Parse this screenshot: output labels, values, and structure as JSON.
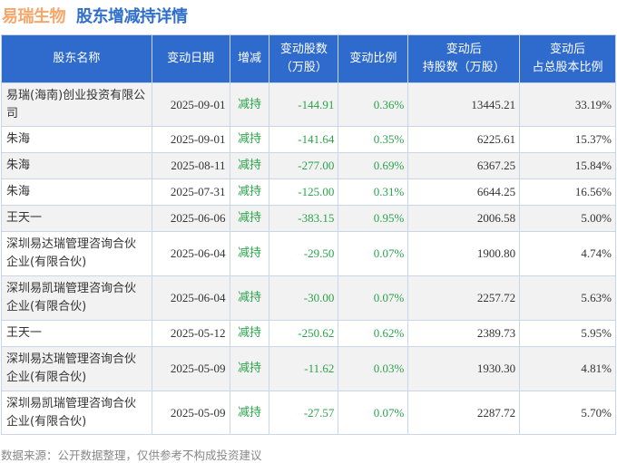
{
  "title": {
    "company": "易瑞生物",
    "subtitle": "股东增减持详情"
  },
  "headers": [
    "股东名称",
    "变动日期",
    "增减",
    "变动股数\n（万股）",
    "变动比例",
    "变动后\n持股数（万股）",
    "变动后\n占总股本比例"
  ],
  "rows": [
    [
      "易瑞(海南)创业投资有限公司",
      "2025-09-01",
      "减持",
      "-144.91",
      "0.36%",
      "13445.21",
      "33.19%"
    ],
    [
      "朱海",
      "2025-09-01",
      "减持",
      "-141.64",
      "0.35%",
      "6225.61",
      "15.37%"
    ],
    [
      "朱海",
      "2025-08-11",
      "减持",
      "-277.00",
      "0.69%",
      "6367.25",
      "15.84%"
    ],
    [
      "朱海",
      "2025-07-31",
      "减持",
      "-125.00",
      "0.31%",
      "6644.25",
      "16.56%"
    ],
    [
      "王天一",
      "2025-06-06",
      "减持",
      "-383.15",
      "0.95%",
      "2006.58",
      "5.00%"
    ],
    [
      "深圳易达瑞管理咨询合伙企业(有限合伙)",
      "2025-06-04",
      "减持",
      "-29.50",
      "0.07%",
      "1900.80",
      "4.74%"
    ],
    [
      "深圳易凯瑞管理咨询合伙企业(有限合伙)",
      "2025-06-04",
      "减持",
      "-30.00",
      "0.07%",
      "2257.72",
      "5.63%"
    ],
    [
      "王天一",
      "2025-05-12",
      "减持",
      "-250.62",
      "0.62%",
      "2389.73",
      "5.95%"
    ],
    [
      "深圳易达瑞管理咨询合伙企业(有限合伙)",
      "2025-05-09",
      "减持",
      "-11.62",
      "0.03%",
      "1930.30",
      "4.81%"
    ],
    [
      "深圳易凯瑞管理咨询合伙企业(有限合伙)",
      "2025-05-09",
      "减持",
      "-27.57",
      "0.07%",
      "2287.72",
      "5.70%"
    ]
  ],
  "footer": "数据来源：公开数据整理，仅供参考不构成投资建议",
  "colors": {
    "header": "#2e6bcc",
    "change": "#2aa34a",
    "company": "#f7a66a",
    "subtitle": "#2f6fca"
  }
}
